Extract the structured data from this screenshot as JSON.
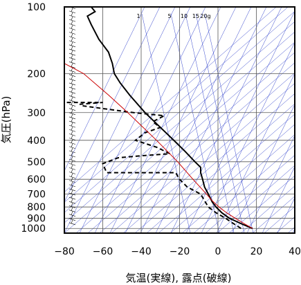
{
  "chart_data": {
    "type": "line",
    "title": "",
    "xlabel": "気温(実線), 露点(破線)",
    "ylabel": "気圧(hPa)",
    "xlim": [
      -80,
      40
    ],
    "ylim": [
      1050,
      100
    ],
    "y_scale": "log",
    "x_ticks": [
      -80,
      -60,
      -40,
      -20,
      0,
      20,
      40
    ],
    "x_tick_labels": [
      "−80",
      "−60",
      "−40",
      "−20",
      "0",
      "20",
      "40"
    ],
    "y_ticks": [
      100,
      200,
      300,
      400,
      500,
      600,
      700,
      800,
      900,
      1000
    ],
    "y_tick_labels": [
      "100",
      "200",
      "300",
      "400",
      "500",
      "600",
      "700",
      "800",
      "900",
      "1000"
    ],
    "mixing_ratio_labels": [
      "1",
      "5",
      "10",
      "15",
      "20g"
    ],
    "grid": true,
    "series": [
      {
        "style": "solid",
        "color": "#000000",
        "points": [
          {
            "p": 1000,
            "t": 18
          },
          {
            "p": 960,
            "t": 13
          },
          {
            "p": 925,
            "t": 9
          },
          {
            "p": 900,
            "t": 6
          },
          {
            "p": 850,
            "t": 2
          },
          {
            "p": 800,
            "t": -1
          },
          {
            "p": 760,
            "t": -3
          },
          {
            "p": 700,
            "t": -5
          },
          {
            "p": 650,
            "t": -7
          },
          {
            "p": 600,
            "t": -8
          },
          {
            "p": 560,
            "t": -9
          },
          {
            "p": 530,
            "t": -9
          },
          {
            "p": 500,
            "t": -12
          },
          {
            "p": 450,
            "t": -17
          },
          {
            "p": 400,
            "t": -23
          },
          {
            "p": 350,
            "t": -30
          },
          {
            "p": 300,
            "t": -38
          },
          {
            "p": 250,
            "t": -46
          },
          {
            "p": 220,
            "t": -51
          },
          {
            "p": 200,
            "t": -54
          },
          {
            "p": 180,
            "t": -55
          },
          {
            "p": 160,
            "t": -57
          },
          {
            "p": 140,
            "t": -62
          },
          {
            "p": 120,
            "t": -66
          },
          {
            "p": 110,
            "t": -68
          },
          {
            "p": 105,
            "t": -64
          },
          {
            "p": 100,
            "t": -66
          }
        ]
      },
      {
        "style": "dashed",
        "color": "#000000",
        "points": [
          {
            "p": 1000,
            "t": 12
          },
          {
            "p": 950,
            "t": 8
          },
          {
            "p": 900,
            "t": 4
          },
          {
            "p": 850,
            "t": -1
          },
          {
            "p": 800,
            "t": -5
          },
          {
            "p": 750,
            "t": -7
          },
          {
            "p": 700,
            "t": -9
          },
          {
            "p": 650,
            "t": -16
          },
          {
            "p": 600,
            "t": -20
          },
          {
            "p": 560,
            "t": -22
          },
          {
            "p": 560,
            "t": -58
          },
          {
            "p": 510,
            "t": -60
          },
          {
            "p": 480,
            "t": -52
          },
          {
            "p": 470,
            "t": -40
          },
          {
            "p": 460,
            "t": -25
          },
          {
            "p": 430,
            "t": -32
          },
          {
            "p": 400,
            "t": -43
          },
          {
            "p": 370,
            "t": -38
          },
          {
            "p": 350,
            "t": -30
          },
          {
            "p": 330,
            "t": -34
          },
          {
            "p": 310,
            "t": -28
          },
          {
            "p": 300,
            "t": -44
          },
          {
            "p": 280,
            "t": -70
          },
          {
            "p": 275,
            "t": -72
          },
          {
            "p": 270,
            "t": -60
          },
          {
            "p": 270,
            "t": -80
          }
        ]
      },
      {
        "style": "solid",
        "color": "#cc0000",
        "points": [
          {
            "p": 1000,
            "t": 18
          },
          {
            "p": 950,
            "t": 13.5
          },
          {
            "p": 900,
            "t": 9
          },
          {
            "p": 850,
            "t": 4.5
          },
          {
            "p": 800,
            "t": 0.5
          },
          {
            "p": 750,
            "t": -3
          },
          {
            "p": 700,
            "t": -6
          },
          {
            "p": 600,
            "t": -13
          },
          {
            "p": 500,
            "t": -21
          },
          {
            "p": 400,
            "t": -32
          },
          {
            "p": 300,
            "t": -47
          },
          {
            "p": 250,
            "t": -57
          },
          {
            "p": 200,
            "t": -70
          },
          {
            "p": 180,
            "t": -80
          }
        ]
      }
    ]
  }
}
